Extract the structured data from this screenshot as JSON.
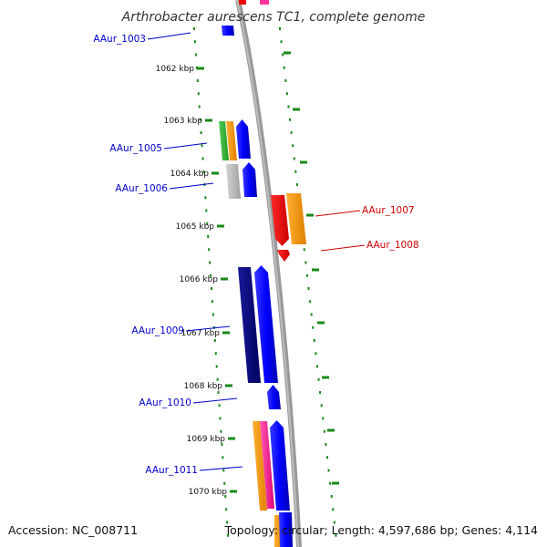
{
  "title": "Arthrobacter aurescens TC1, complete genome",
  "footer": {
    "accession": "Accession: NC_008711",
    "topology": "Topology: circular; Length: 4,597,686 bp; Genes: 4,114"
  },
  "ticks": [
    {
      "label": "1062 kbp"
    },
    {
      "label": "1063 kbp"
    },
    {
      "label": "1064 kbp"
    },
    {
      "label": "1065 kbp"
    },
    {
      "label": "1066 kbp"
    },
    {
      "label": "1067 kbp"
    },
    {
      "label": "1068 kbp"
    },
    {
      "label": "1069 kbp"
    },
    {
      "label": "1070 kbp"
    }
  ],
  "gene_labels": [
    {
      "text": "AAur_1003",
      "strand": "forward",
      "color": "#0000cc"
    },
    {
      "text": "AAur_1005",
      "strand": "forward",
      "color": "#0000cc"
    },
    {
      "text": "AAur_1006",
      "strand": "forward",
      "color": "#0000cc"
    },
    {
      "text": "AAur_1007",
      "strand": "reverse",
      "color": "#cc0000"
    },
    {
      "text": "AAur_1008",
      "strand": "reverse",
      "color": "#cc0000"
    },
    {
      "text": "AAur_1009",
      "strand": "forward",
      "color": "#0000cc"
    },
    {
      "text": "AAur_1010",
      "strand": "forward",
      "color": "#0000cc"
    },
    {
      "text": "AAur_1011",
      "strand": "forward",
      "color": "#0000cc"
    }
  ],
  "colors": {
    "backbone": "#999999",
    "dotted_ring": "#1a8a1a",
    "forward_label": "#0000cc",
    "reverse_label": "#cc0000",
    "blue_gene": "#0000ff",
    "navy_gene": "#000080",
    "red_gene": "#ee0000",
    "orange_gene": "#ff9900",
    "green_gene": "#33bb33",
    "gray_gene": "#bbbbbb",
    "pink_gene": "#ff3399"
  }
}
